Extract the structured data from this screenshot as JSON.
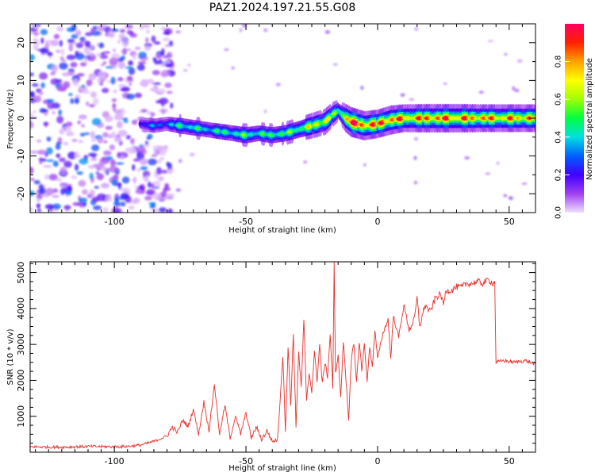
{
  "title": "PAZ1.2024.197.21.55.G08",
  "chart_data": [
    {
      "type": "heatmap",
      "title": "PAZ1.2024.197.21.55.G08",
      "xlabel": "Height of straight line (km)",
      "ylabel": "Frequency (Hz)",
      "xlim": [
        -132,
        60
      ],
      "ylim": [
        -25,
        25
      ],
      "xticks": [
        -100,
        -50,
        0,
        50
      ],
      "yticks": [
        -20,
        -10,
        0,
        10,
        20
      ],
      "colorbar": {
        "label": "Normalized spectral amplitude",
        "range": [
          0,
          1
        ],
        "ticks": [
          0.0,
          0.2,
          0.4,
          0.6,
          0.8
        ],
        "colormap": [
          "#f0e0ff",
          "#a040f0",
          "#4000ff",
          "#0060ff",
          "#00e0e0",
          "#00ff40",
          "#a0ff00",
          "#ffff00",
          "#ffa000",
          "#ff2000",
          "#ff0060"
        ]
      },
      "ridge": {
        "x": [
          -90,
          -85,
          -80,
          -75,
          -70,
          -65,
          -60,
          -55,
          -50,
          -45,
          -40,
          -35,
          -30,
          -25,
          -20,
          -17,
          -15,
          -12,
          -10,
          -5,
          0,
          5,
          10,
          20,
          30,
          40,
          50,
          60
        ],
        "frequency": [
          -1.5,
          -2,
          -1.5,
          -2,
          -2.5,
          -3,
          -3.5,
          -4,
          -4.5,
          -4,
          -4.5,
          -4,
          -3,
          -2,
          -1,
          1,
          2,
          0,
          -1,
          -2,
          -1.5,
          -0.5,
          0,
          0,
          0,
          0,
          0,
          0
        ],
        "amplitude": [
          0.25,
          0.3,
          0.3,
          0.45,
          0.45,
          0.4,
          0.45,
          0.45,
          0.5,
          0.45,
          0.5,
          0.5,
          0.55,
          0.65,
          0.7,
          0.6,
          0.4,
          0.85,
          0.95,
          0.9,
          0.85,
          0.9,
          0.8,
          0.85,
          0.85,
          0.8,
          0.8,
          0.8
        ]
      }
    },
    {
      "type": "line",
      "xlabel": "Height of straight line (km)",
      "ylabel": "SNR (10 * v/v)",
      "xlim": [
        -132,
        60
      ],
      "ylim": [
        0,
        5300
      ],
      "xticks": [
        -100,
        -50,
        0,
        50
      ],
      "yticks": [
        1000,
        2000,
        3000,
        4000,
        5000
      ],
      "color": "#e8302a",
      "series": [
        {
          "x": [
            -132,
            -120,
            -110,
            -100,
            -95,
            -90,
            -85,
            -80,
            -78,
            -76,
            -74,
            -72,
            -70,
            -68,
            -66,
            -64,
            -62,
            -60,
            -58,
            -56,
            -54,
            -52,
            -50,
            -48,
            -46,
            -44,
            -42,
            -40,
            -38,
            -37,
            -36,
            -35,
            -34,
            -33,
            -32,
            -31,
            -30,
            -29,
            -28,
            -27,
            -26,
            -25,
            -24,
            -23,
            -22,
            -21,
            -20,
            -19,
            -18,
            -17,
            -16.5,
            -16,
            -15,
            -14,
            -13,
            -12,
            -11,
            -10,
            -9,
            -8,
            -7,
            -6,
            -5,
            -4,
            -3,
            -2,
            -1,
            0,
            2,
            4,
            5,
            6,
            8,
            10,
            12,
            14,
            15,
            16,
            18,
            20,
            22,
            24,
            25,
            26,
            28,
            30,
            32,
            34,
            36,
            38,
            40,
            42,
            44,
            44.5,
            45,
            48,
            52,
            56,
            60
          ],
          "values": [
            150,
            140,
            160,
            150,
            160,
            200,
            300,
            450,
            700,
            550,
            900,
            700,
            1200,
            500,
            1400,
            600,
            1900,
            500,
            1300,
            400,
            1000,
            500,
            1100,
            400,
            700,
            350,
            600,
            300,
            350,
            1500,
            2700,
            600,
            2900,
            1300,
            3300,
            700,
            2800,
            1800,
            3700,
            1400,
            2200,
            1700,
            2800,
            2000,
            3000,
            1900,
            2500,
            2100,
            3300,
            1800,
            5300,
            2200,
            2700,
            1500,
            3100,
            2000,
            900,
            2600,
            3000,
            1900,
            3100,
            2300,
            3000,
            2000,
            2900,
            2400,
            3400,
            2600,
            3300,
            3700,
            2600,
            3800,
            3200,
            4100,
            3400,
            3700,
            4300,
            3500,
            4100,
            3900,
            4300,
            4400,
            4100,
            4500,
            4500,
            4600,
            4600,
            4700,
            4700,
            4750,
            4700,
            4800,
            4700,
            4750,
            2500,
            2550,
            2500,
            2550,
            2450
          ]
        }
      ]
    }
  ]
}
